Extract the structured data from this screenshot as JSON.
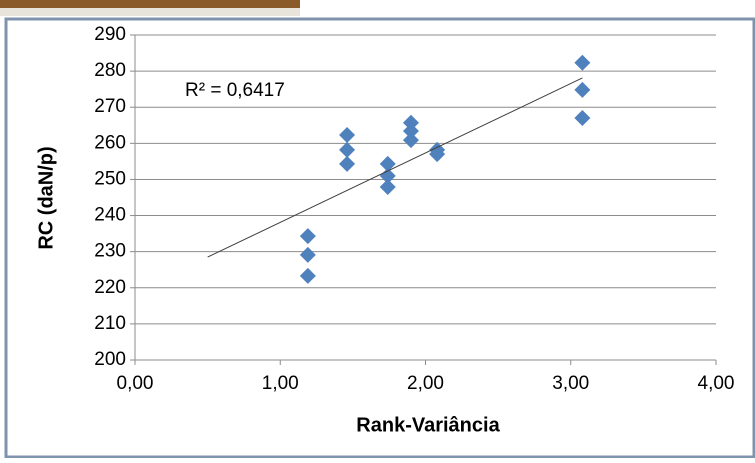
{
  "chart_data": {
    "type": "scatter",
    "x_label": "Rank-Variância",
    "y_label": "RC (daN/p)",
    "annotation": "R² = 0,6417",
    "series": [
      {
        "color": "#4f81bd",
        "x": [
          1.19,
          1.19,
          1.19,
          1.46,
          1.46,
          1.46,
          1.74,
          1.74,
          1.74,
          1.9,
          1.9,
          1.9,
          2.08,
          2.08,
          3.08,
          3.08,
          3.08
        ],
        "values": [
          234.3,
          229.1,
          223.3,
          262.3,
          258.2,
          254.3,
          254.3,
          251,
          247.9,
          265.7,
          263.4,
          260.9,
          258.2,
          257,
          282.3,
          274.8,
          267
        ]
      }
    ],
    "trendline": {
      "color": "#404040",
      "x": [
        0.5,
        3.08
      ],
      "y": [
        228.5,
        278.1
      ]
    },
    "xlim": [
      0,
      4
    ],
    "ylim": [
      200,
      290
    ],
    "xticks": [
      {
        "value": 0,
        "label": "0,00"
      },
      {
        "value": 1,
        "label": "1,00"
      },
      {
        "value": 2,
        "label": "2,00"
      },
      {
        "value": 3,
        "label": "3,00"
      },
      {
        "value": 4,
        "label": "4,00"
      }
    ],
    "yticks": [
      200,
      210,
      220,
      230,
      240,
      250,
      260,
      270,
      280,
      290
    ],
    "grid": true
  }
}
